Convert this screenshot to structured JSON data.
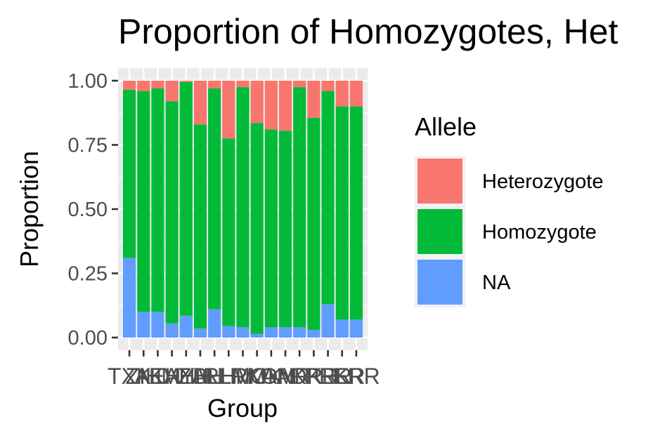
{
  "chart_data": {
    "type": "bar",
    "stacked": true,
    "title": "Proportion of Homozygotes, Het",
    "xlabel": "Group",
    "ylabel": "Proportion",
    "ylim": [
      0,
      1
    ],
    "yticks": [
      "0.00",
      "0.25",
      "0.50",
      "0.75",
      "1.00"
    ],
    "categories": [
      "TXK",
      "ZIH",
      "AEH",
      "KAH",
      "MYH",
      "ZAH",
      "BLH",
      "RHM",
      "LRM",
      "MOK",
      "KAM",
      "ONR",
      "AKR",
      "OKR",
      "PRR",
      "EKR",
      "ERR"
    ],
    "series": [
      {
        "name": "NA",
        "color": "#619CFF",
        "values": [
          0.31,
          0.1,
          0.1,
          0.055,
          0.085,
          0.035,
          0.11,
          0.045,
          0.04,
          0.015,
          0.04,
          0.04,
          0.04,
          0.03,
          0.13,
          0.07,
          0.07
        ]
      },
      {
        "name": "Homozygote",
        "color": "#00BA38",
        "values": [
          0.655,
          0.86,
          0.87,
          0.865,
          0.91,
          0.795,
          0.86,
          0.73,
          0.935,
          0.82,
          0.77,
          0.765,
          0.935,
          0.825,
          0.83,
          0.83,
          0.83
        ]
      },
      {
        "name": "Heterozygote",
        "color": "#F8766D",
        "values": [
          0.035,
          0.04,
          0.03,
          0.08,
          0.005,
          0.17,
          0.03,
          0.225,
          0.025,
          0.165,
          0.19,
          0.195,
          0.025,
          0.145,
          0.04,
          0.1,
          0.1
        ]
      }
    ],
    "legend": {
      "title": "Allele",
      "position": "right",
      "entries": [
        {
          "label": "Heterozygote",
          "color": "#F8766D"
        },
        {
          "label": "Homozygote",
          "color": "#00BA38"
        },
        {
          "label": "NA",
          "color": "#619CFF"
        }
      ]
    },
    "grid": true,
    "panel_background": "#EBEBEB"
  }
}
